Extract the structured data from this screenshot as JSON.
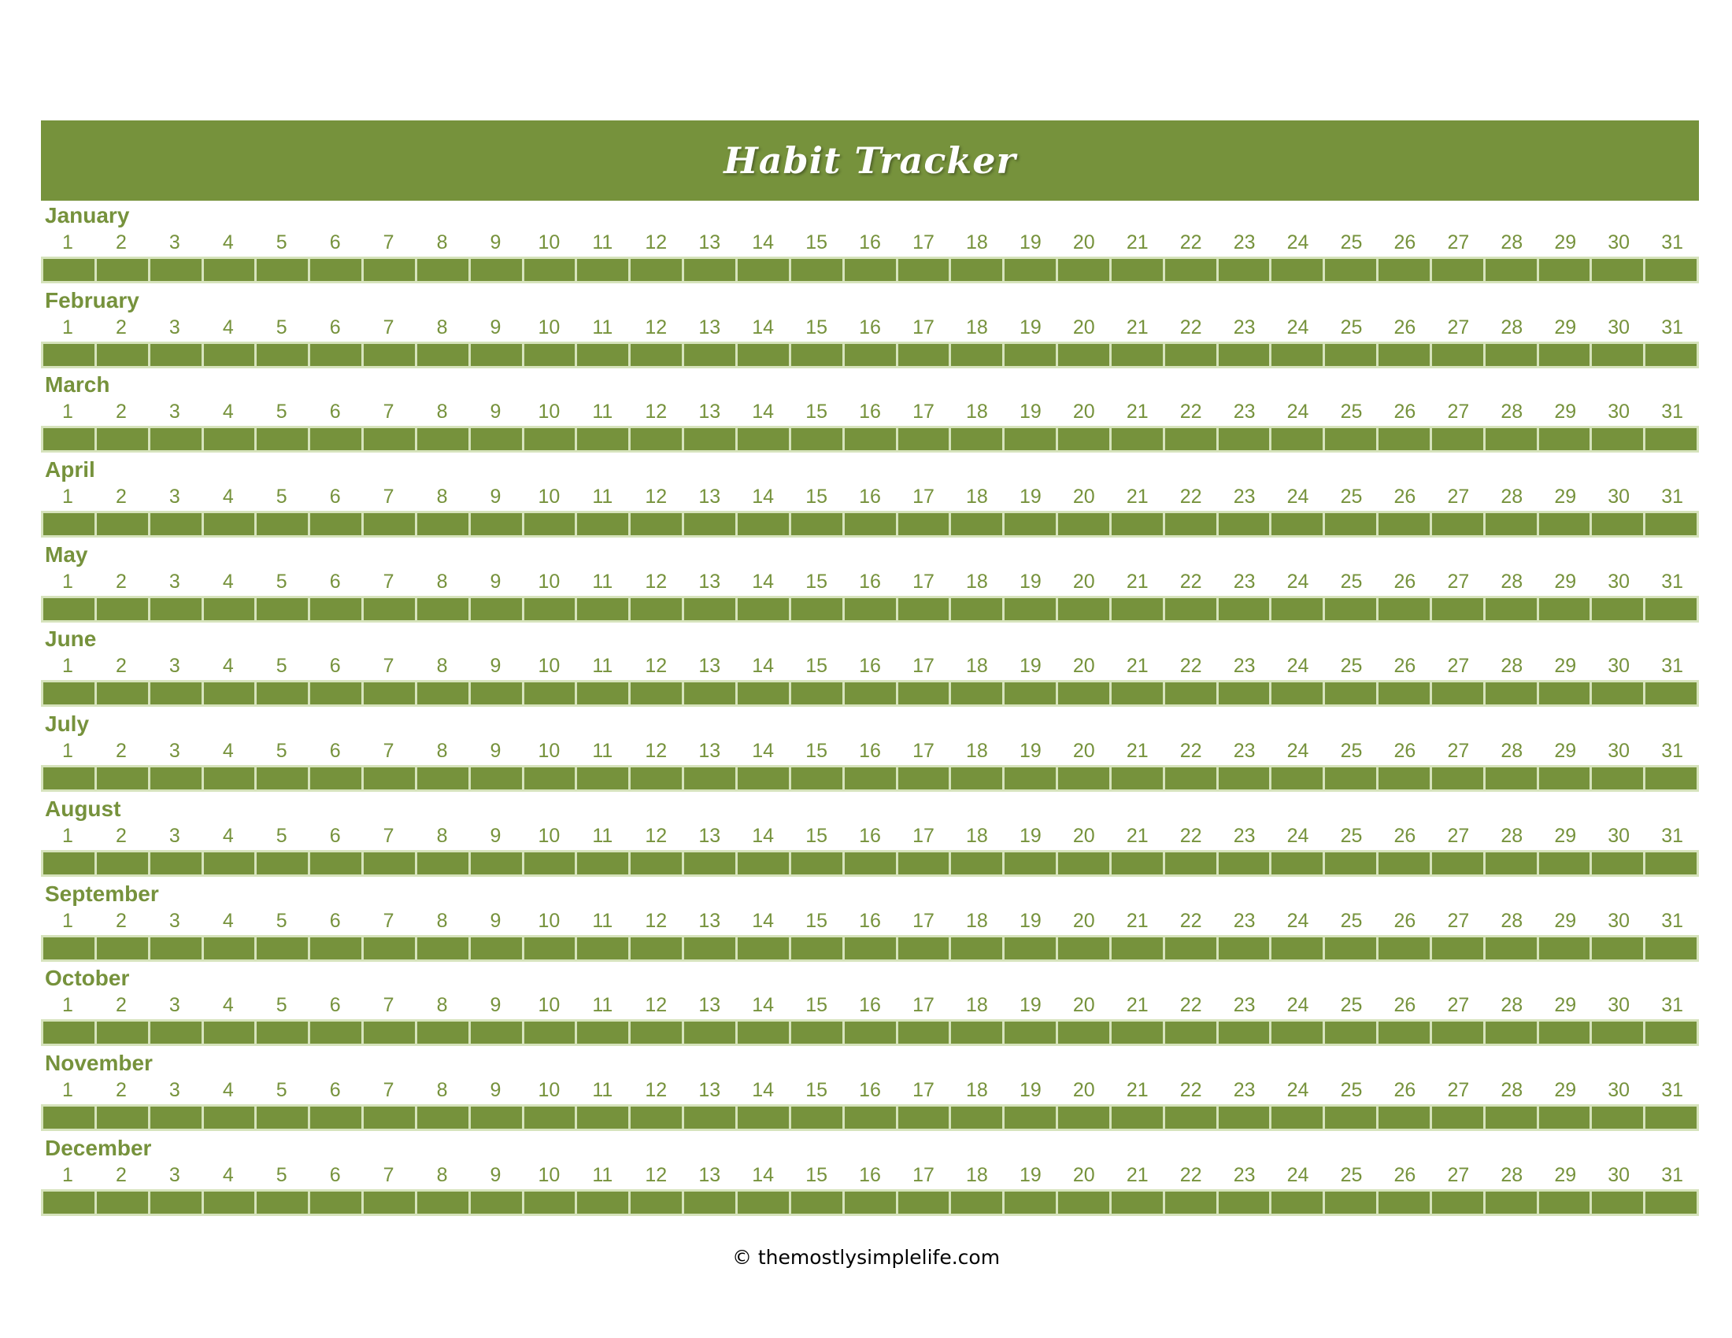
{
  "title": "Habit Tracker",
  "months": [
    "January",
    "February",
    "March",
    "April",
    "May",
    "June",
    "July",
    "August",
    "September",
    "October",
    "November",
    "December"
  ],
  "days": [
    "1",
    "2",
    "3",
    "4",
    "5",
    "6",
    "7",
    "8",
    "9",
    "10",
    "11",
    "12",
    "13",
    "14",
    "15",
    "16",
    "17",
    "18",
    "19",
    "20",
    "21",
    "22",
    "23",
    "24",
    "25",
    "26",
    "27",
    "28",
    "29",
    "30",
    "31"
  ],
  "footer": "© themostlysimplelife.com",
  "colors": {
    "accent": "#76923c",
    "cell_border": "#d6e3bc",
    "title_text": "#ffffff"
  }
}
